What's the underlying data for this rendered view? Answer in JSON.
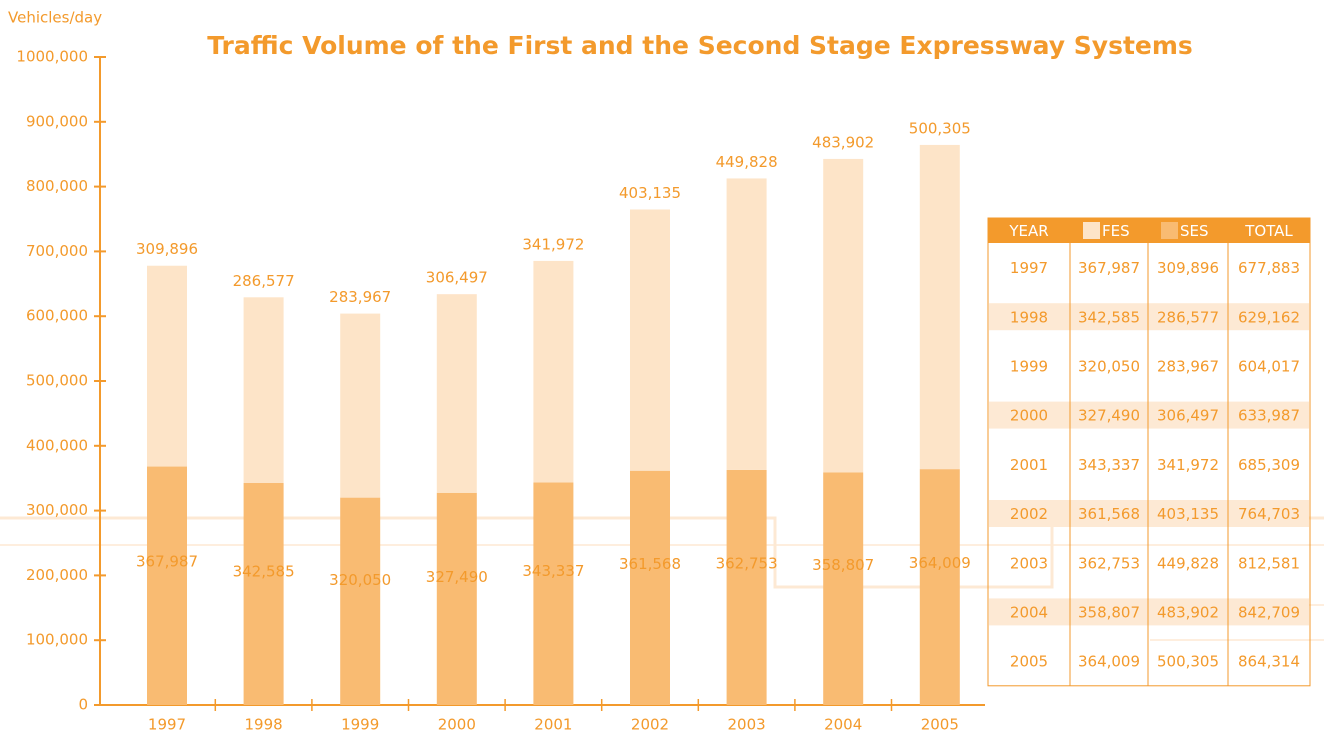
{
  "chart_data": {
    "type": "bar",
    "stacked": true,
    "title": "Traffic Volume of the First and the Second Stage Expressway Systems",
    "y_label": "Vehicles/day",
    "categories": [
      "1997",
      "1998",
      "1999",
      "2000",
      "2001",
      "2002",
      "2003",
      "2004",
      "2005"
    ],
    "series": [
      {
        "name": "FES",
        "color": "#f9bb72",
        "values": [
          367987,
          342585,
          320050,
          327490,
          343337,
          361568,
          362753,
          358807,
          364009
        ],
        "value_labels": [
          "367,987",
          "342,585",
          "320,050",
          "327,490",
          "343,337",
          "361,568",
          "362,753",
          "358,807",
          "364,009"
        ]
      },
      {
        "name": "SES",
        "color": "#fde4c8",
        "values": [
          309896,
          286577,
          283967,
          306497,
          341972,
          403135,
          449828,
          483902,
          500305
        ],
        "value_labels": [
          "309,896",
          "286,577",
          "283,967",
          "306,497",
          "341,972",
          "403,135",
          "449,828",
          "483,902",
          "500,305"
        ]
      }
    ],
    "ylim": [
      0,
      1000000
    ],
    "yticks": [
      0,
      {
        "value": 100000,
        "label": "100,000"
      },
      {
        "value": 200000,
        "label": "200,000"
      },
      {
        "value": 300000,
        "label": "300,000"
      },
      {
        "value": 400000,
        "label": "400,000"
      },
      {
        "value": 500000,
        "label": "500,000"
      },
      {
        "value": 600000,
        "label": "600,000"
      },
      {
        "value": 700000,
        "label": "700,000"
      },
      {
        "value": 800000,
        "label": "800,000"
      },
      {
        "value": 900000,
        "label": "900,000"
      },
      {
        "value": 1000000,
        "label": "1000,000"
      }
    ]
  },
  "table": {
    "columns": [
      "YEAR",
      "FES",
      "SES",
      "TOTAL"
    ],
    "rows": [
      [
        "1997",
        "367,987",
        "309,896",
        "677,883"
      ],
      [
        "1998",
        "342,585",
        "286,577",
        "629,162"
      ],
      [
        "1999",
        "320,050",
        "283,967",
        "604,017"
      ],
      [
        "2000",
        "327,490",
        "306,497",
        "633,987"
      ],
      [
        "2001",
        "343,337",
        "341,972",
        "685,309"
      ],
      [
        "2002",
        "361,568",
        "403,135",
        "764,703"
      ],
      [
        "2003",
        "362,753",
        "449,828",
        "812,581"
      ],
      [
        "2004",
        "358,807",
        "483,902",
        "842,709"
      ],
      [
        "2005",
        "364,009",
        "500,305",
        "864,314"
      ]
    ]
  }
}
